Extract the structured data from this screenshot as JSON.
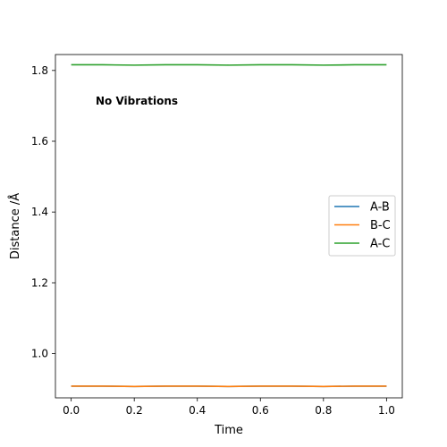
{
  "chart_data": {
    "type": "line",
    "title": "",
    "xlabel": "Time",
    "ylabel": "Distance /Å",
    "xlim": [
      -0.05,
      1.05
    ],
    "ylim": [
      0.875,
      1.845
    ],
    "xticks": [
      0.0,
      0.2,
      0.4,
      0.6,
      0.8,
      1.0
    ],
    "xtick_labels": [
      "0.0",
      "0.2",
      "0.4",
      "0.6",
      "0.8",
      "1.0"
    ],
    "yticks": [
      1.0,
      1.2,
      1.4,
      1.6,
      1.8
    ],
    "ytick_labels": [
      "1.0",
      "1.2",
      "1.4",
      "1.6",
      "1.8"
    ],
    "grid": false,
    "legend_position": "center-right",
    "annotation": "No Vibrations",
    "series": [
      {
        "name": "A-B",
        "color": "#1f77b4",
        "x": [
          0.0,
          0.1,
          0.2,
          0.3,
          0.4,
          0.5,
          0.6,
          0.7,
          0.8,
          0.9,
          1.0
        ],
        "y": [
          0.908,
          0.908,
          0.907,
          0.908,
          0.908,
          0.907,
          0.908,
          0.908,
          0.907,
          0.908,
          0.908
        ]
      },
      {
        "name": "B-C",
        "color": "#ff7f0e",
        "x": [
          0.0,
          0.1,
          0.2,
          0.3,
          0.4,
          0.5,
          0.6,
          0.7,
          0.8,
          0.9,
          1.0
        ],
        "y": [
          0.908,
          0.908,
          0.907,
          0.908,
          0.908,
          0.907,
          0.908,
          0.908,
          0.907,
          0.908,
          0.908
        ]
      },
      {
        "name": "A-C",
        "color": "#2ca02c",
        "x": [
          0.0,
          0.1,
          0.2,
          0.3,
          0.4,
          0.5,
          0.6,
          0.7,
          0.8,
          0.9,
          1.0
        ],
        "y": [
          1.816,
          1.816,
          1.815,
          1.816,
          1.816,
          1.815,
          1.816,
          1.816,
          1.815,
          1.816,
          1.816
        ]
      }
    ]
  }
}
